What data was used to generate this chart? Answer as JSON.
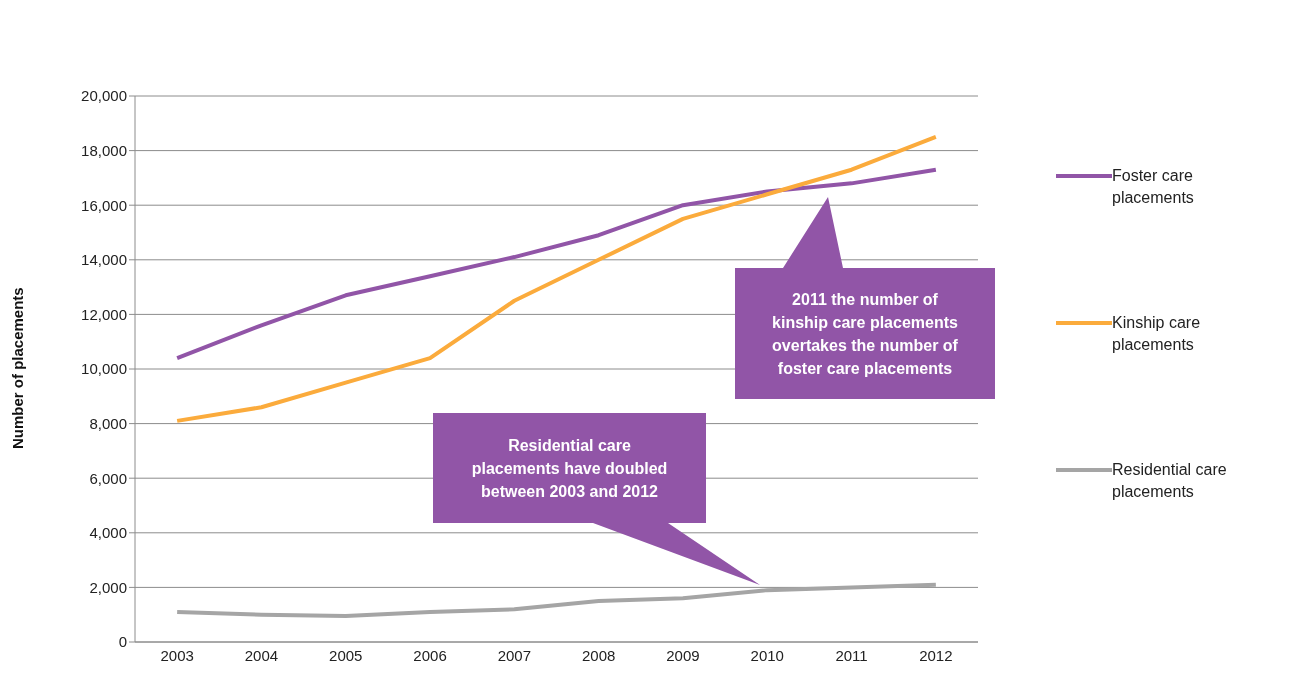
{
  "chart_data": {
    "type": "line",
    "ylabel": "Number of placements",
    "categories": [
      "2003",
      "2004",
      "2005",
      "2006",
      "2007",
      "2008",
      "2009",
      "2010",
      "2011",
      "2012"
    ],
    "series": [
      {
        "name": "Foster care placements",
        "color": "#9155a7",
        "values": [
          10400,
          11600,
          12700,
          13400,
          14100,
          14900,
          16000,
          16500,
          16800,
          17300
        ]
      },
      {
        "name": "Kinship care placements",
        "color": "#fbab3c",
        "values": [
          8100,
          8600,
          9500,
          10400,
          12500,
          14000,
          15500,
          16400,
          17300,
          18500
        ]
      },
      {
        "name": "Residential care placements",
        "color": "#a5a5a5",
        "values": [
          1100,
          1000,
          950,
          1100,
          1200,
          1500,
          1600,
          1900,
          2000,
          2100
        ]
      }
    ],
    "ylim": [
      0,
      20000
    ],
    "yticks": [
      0,
      {
        "value": 2000,
        "label": "2,000"
      },
      {
        "value": 4000,
        "label": "4,000"
      },
      {
        "value": 6000,
        "label": "6,000"
      },
      {
        "value": 8000,
        "label": "8,000"
      },
      {
        "value": 10000,
        "label": "10,000"
      },
      {
        "value": 12000,
        "label": "12,000"
      },
      {
        "value": 14000,
        "label": "14,000"
      },
      {
        "value": 16000,
        "label": "16,000"
      },
      {
        "value": 18000,
        "label": "18,000"
      },
      {
        "value": 20000,
        "label": "20,000"
      }
    ],
    "grid": "y",
    "legend": "right",
    "marker": "none",
    "line_style": "solid",
    "annotations": [
      "2011 the number of kinship care placements overtakes the number of foster care placements",
      "Residential care placements have doubled between 2003 and 2012"
    ]
  }
}
